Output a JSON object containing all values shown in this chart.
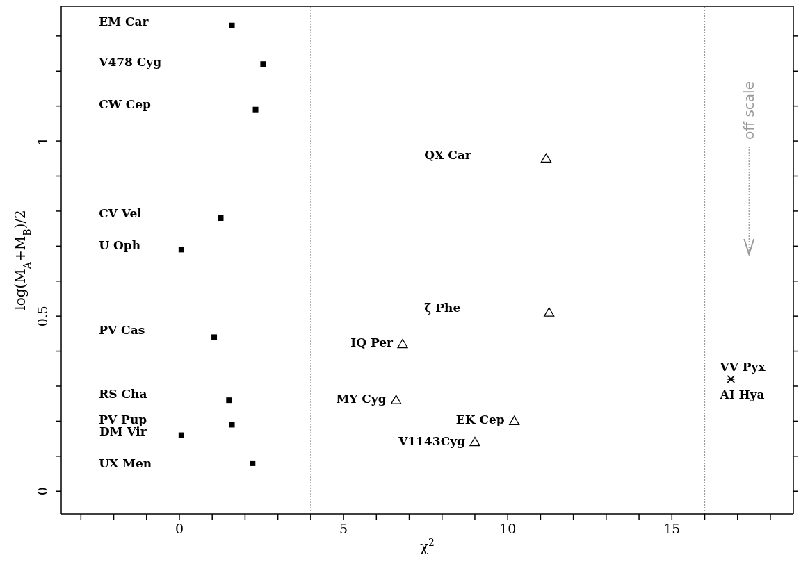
{
  "chart_data": {
    "type": "scatter",
    "xlabel": "χ$^{2}$",
    "ylabel": "log(M$_{A}$+M$_{B}$)/2",
    "xlim": [
      -3.6,
      18.7
    ],
    "ylim": [
      -0.065,
      1.385
    ],
    "xticks": [
      {
        "value": -3,
        "label": null
      },
      {
        "value": -2,
        "label": null
      },
      {
        "value": -1,
        "label": null
      },
      0,
      {
        "value": 1,
        "label": null
      },
      {
        "value": 2,
        "label": null
      },
      {
        "value": 3,
        "label": null
      },
      {
        "value": 4,
        "label": null
      },
      5,
      {
        "value": 6,
        "label": null
      },
      {
        "value": 7,
        "label": null
      },
      {
        "value": 8,
        "label": null
      },
      {
        "value": 9,
        "label": null
      },
      10,
      {
        "value": 11,
        "label": null
      },
      {
        "value": 12,
        "label": null
      },
      {
        "value": 13,
        "label": null
      },
      {
        "value": 14,
        "label": null
      },
      15,
      {
        "value": 16,
        "label": null
      },
      {
        "value": 17,
        "label": null
      },
      {
        "value": 18,
        "label": null
      }
    ],
    "yticks": [
      0,
      {
        "value": 0.1,
        "label": null
      },
      {
        "value": 0.2,
        "label": null
      },
      {
        "value": 0.3,
        "label": null
      },
      {
        "value": 0.4,
        "label": null
      },
      0.5,
      {
        "value": 0.6,
        "label": null
      },
      {
        "value": 0.7,
        "label": null
      },
      {
        "value": 0.8,
        "label": null
      },
      {
        "value": 0.9,
        "label": null
      },
      1,
      {
        "value": 1.1,
        "label": null
      },
      {
        "value": 1.2,
        "label": null
      },
      {
        "value": 1.3,
        "label": null
      }
    ],
    "series": [
      {
        "color": "#000000",
        "marker": "square",
        "x": [
          1.6,
          2.55,
          2.32,
          1.26,
          0.06,
          1.06,
          1.51,
          1.6,
          0.06,
          2.23
        ],
        "values": [
          1.33,
          1.22,
          1.09,
          0.78,
          0.69,
          0.44,
          0.26,
          0.19,
          0.16,
          0.08
        ]
      },
      {
        "color": "#000000",
        "marker": "triangle",
        "x": [
          11.17,
          11.26,
          6.8,
          6.6,
          10.2,
          9.0
        ],
        "values": [
          0.95,
          0.51,
          0.42,
          0.26,
          0.2,
          0.14
        ]
      },
      {
        "color": "#000000",
        "marker": "cross",
        "x": [
          16.8
        ],
        "values": [
          0.32
        ]
      }
    ],
    "ref_lines": [
      {
        "axis": "x",
        "value": 4,
        "color": "#999999",
        "line_style": "dotted"
      },
      {
        "axis": "x",
        "value": 16,
        "color": "#999999",
        "line_style": "dotted"
      }
    ],
    "annotations": [
      "EM Car",
      "V478 Cyg",
      "CW Cep",
      "CV Vel",
      "U Oph",
      "PV Cas",
      "RS Cha",
      "PV Pup",
      {
        "text": "DM Vir",
        "x": 0.06,
        "y": 0.16
      },
      "UX Men",
      "QX Car",
      "ζ Phe",
      {
        "text": "IQ Per",
        "x": 6.8,
        "y": 0.42
      },
      {
        "text": "MY Cyg",
        "x": 6.6,
        "y": 0.26
      },
      {
        "text": "EK Cep",
        "x": 10.2,
        "y": 0.2
      },
      {
        "text": "V1143Cyg",
        "x": 9.0,
        "y": 0.14
      },
      {
        "text": "VV Pyx",
        "x": 16.8,
        "y": 0.32
      },
      {
        "text": "AI Hya",
        "x": 16.8,
        "y": 0.32
      },
      "off scale"
    ]
  }
}
